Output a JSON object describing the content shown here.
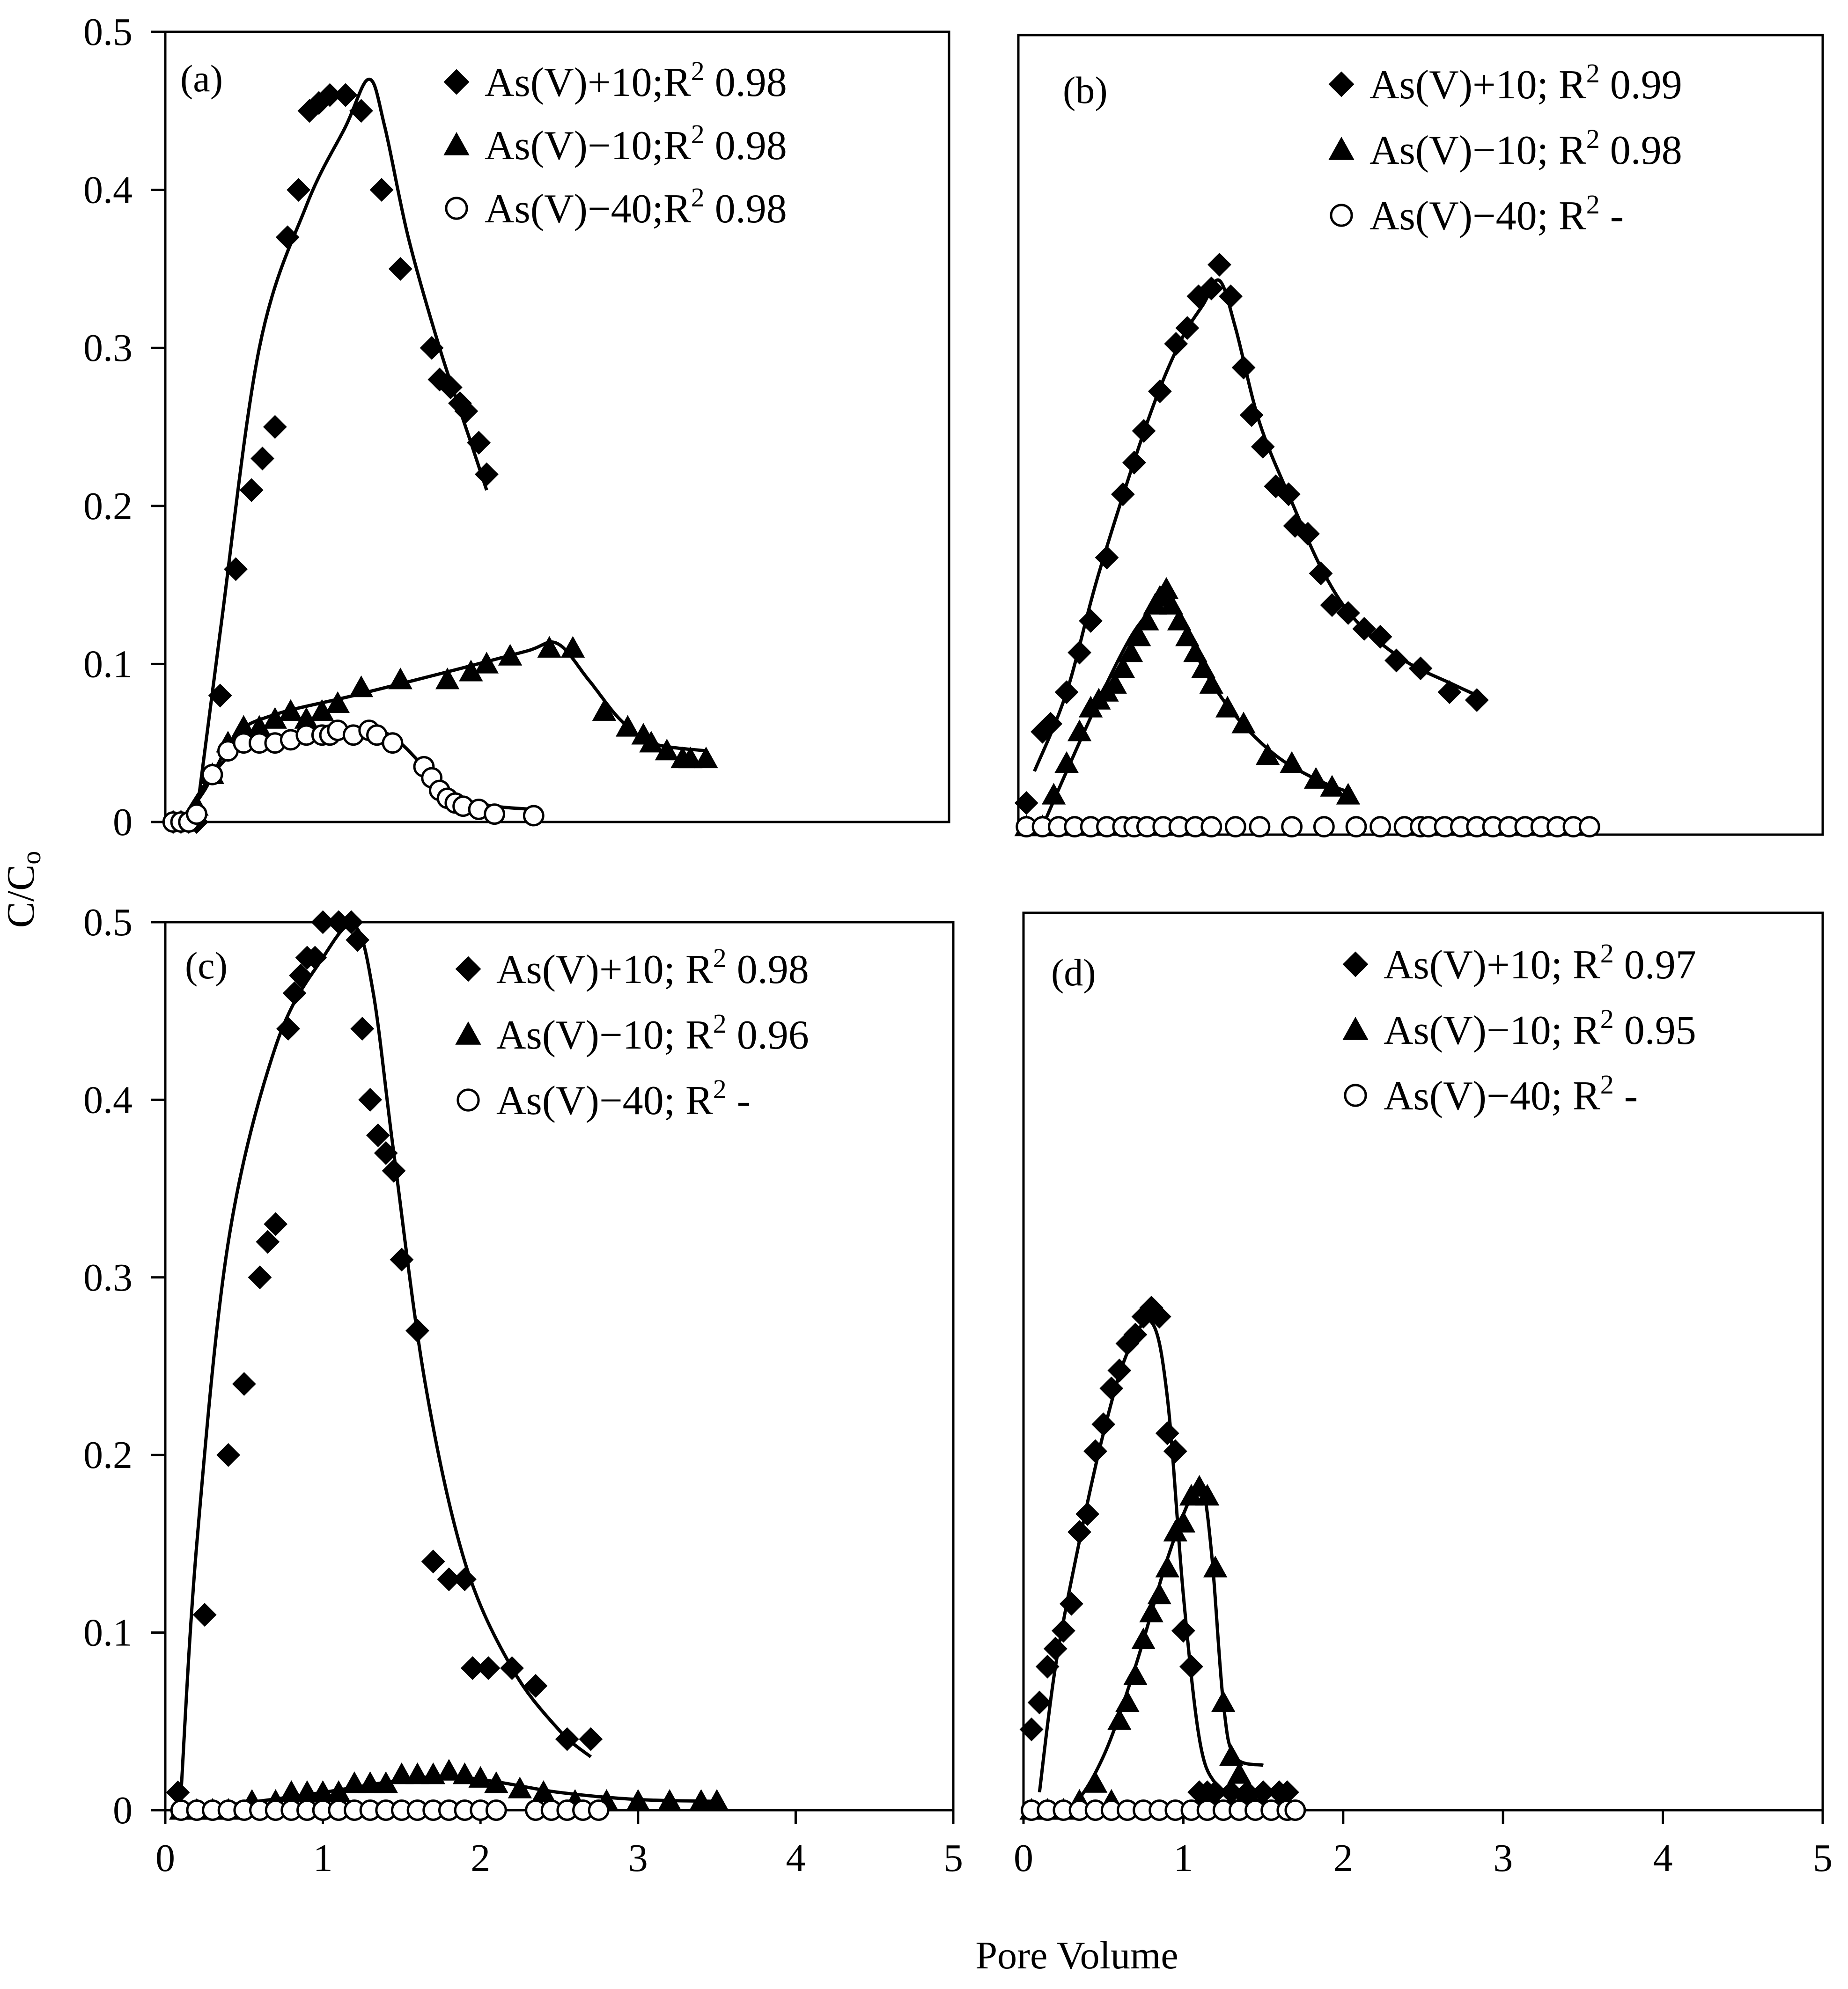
{
  "figure": {
    "x_axis_title": "Pore Volume",
    "y_axis_title_main": "C/C",
    "y_axis_title_sub": "o"
  },
  "chart_data": [
    {
      "type": "scatter",
      "panel_label": "(a)",
      "xlim": [
        0,
        5
      ],
      "ylim": [
        0,
        0.5
      ],
      "x_ticks": [],
      "y_ticks": [
        "0",
        "0.1",
        "0.2",
        "0.3",
        "0.4",
        "0.5"
      ],
      "series": [
        {
          "name": "As(V)+10",
          "marker": "diamond",
          "legend_prefix": "As(V)+10;R",
          "legend_value": "0.98",
          "x": [
            0.05,
            0.1,
            0.15,
            0.2,
            0.35,
            0.45,
            0.55,
            0.62,
            0.7,
            0.78,
            0.85,
            0.92,
            0.98,
            1.05,
            1.15,
            1.25,
            1.38,
            1.5,
            1.7,
            1.75,
            1.82,
            1.88,
            1.92,
            2.0,
            2.05
          ],
          "y": [
            0,
            0,
            0,
            0,
            0.08,
            0.16,
            0.21,
            0.23,
            0.25,
            0.37,
            0.4,
            0.45,
            0.455,
            0.46,
            0.46,
            0.45,
            0.4,
            0.35,
            0.3,
            0.28,
            0.275,
            0.265,
            0.26,
            0.24,
            0.22
          ],
          "fit_x": [
            0.2,
            0.35,
            0.6,
            0.9,
            1.15,
            1.3,
            1.4,
            1.55,
            1.75,
            1.95,
            2.05
          ],
          "fit_y": [
            0.005,
            0.12,
            0.3,
            0.39,
            0.44,
            0.47,
            0.44,
            0.37,
            0.3,
            0.24,
            0.21
          ]
        },
        {
          "name": "As(V)-10",
          "marker": "triangle",
          "legend_prefix": "As(V)−10;R",
          "legend_value": "0.98",
          "x": [
            0.1,
            0.2,
            0.3,
            0.4,
            0.5,
            0.6,
            0.7,
            0.8,
            0.9,
            1.0,
            1.1,
            1.25,
            1.5,
            1.8,
            1.95,
            2.05,
            2.2,
            2.45,
            2.6,
            2.8,
            2.95,
            3.05,
            3.1,
            3.2,
            3.3,
            3.35,
            3.45
          ],
          "y": [
            0,
            0.01,
            0.03,
            0.05,
            0.06,
            0.06,
            0.065,
            0.07,
            0.065,
            0.07,
            0.075,
            0.085,
            0.09,
            0.09,
            0.095,
            0.1,
            0.105,
            0.11,
            0.11,
            0.07,
            0.06,
            0.055,
            0.05,
            0.045,
            0.04,
            0.04,
            0.04
          ],
          "fit_x": [
            0.1,
            0.25,
            0.45,
            0.7,
            1.2,
            1.8,
            2.3,
            2.5,
            2.7,
            2.9,
            3.1,
            3.45
          ],
          "fit_y": [
            0,
            0.02,
            0.055,
            0.068,
            0.08,
            0.095,
            0.108,
            0.113,
            0.09,
            0.065,
            0.05,
            0.045
          ]
        },
        {
          "name": "As(V)-40",
          "marker": "circle",
          "legend_prefix": "As(V)−40;R",
          "legend_value": "0.98",
          "x": [
            0.05,
            0.1,
            0.15,
            0.2,
            0.3,
            0.4,
            0.5,
            0.6,
            0.7,
            0.8,
            0.9,
            1.0,
            1.05,
            1.1,
            1.2,
            1.3,
            1.35,
            1.45,
            1.65,
            1.7,
            1.75,
            1.8,
            1.85,
            1.9,
            2.0,
            2.1,
            2.35
          ],
          "y": [
            0,
            0,
            0,
            0.005,
            0.03,
            0.045,
            0.05,
            0.05,
            0.05,
            0.052,
            0.055,
            0.055,
            0.055,
            0.058,
            0.055,
            0.058,
            0.055,
            0.05,
            0.035,
            0.028,
            0.02,
            0.015,
            0.012,
            0.01,
            0.008,
            0.005,
            0.004
          ],
          "fit_x": [
            0.1,
            0.3,
            0.5,
            0.8,
            1.1,
            1.35,
            1.5,
            1.7,
            1.9,
            2.1,
            2.35
          ],
          "fit_y": [
            0,
            0.03,
            0.048,
            0.053,
            0.057,
            0.058,
            0.05,
            0.03,
            0.015,
            0.01,
            0.008
          ]
        }
      ]
    },
    {
      "type": "scatter",
      "panel_label": "(b)",
      "xlim": [
        0,
        5
      ],
      "ylim": [
        -0.005,
        0.5
      ],
      "x_ticks": [],
      "y_ticks": [],
      "series": [
        {
          "name": "As(V)+10",
          "marker": "diamond",
          "legend_prefix": "As(V)+10; R",
          "legend_value": "0.99",
          "x": [
            0.05,
            0.15,
            0.2,
            0.3,
            0.38,
            0.45,
            0.55,
            0.65,
            0.72,
            0.78,
            0.88,
            0.98,
            1.05,
            1.12,
            1.2,
            1.25,
            1.32,
            1.4,
            1.45,
            1.52,
            1.6,
            1.68,
            1.72,
            1.8,
            1.88,
            1.95,
            2.05,
            2.15,
            2.25,
            2.35,
            2.5,
            2.68,
            2.85
          ],
          "y": [
            0.015,
            0.06,
            0.065,
            0.085,
            0.11,
            0.13,
            0.17,
            0.21,
            0.23,
            0.25,
            0.275,
            0.305,
            0.315,
            0.335,
            0.34,
            0.355,
            0.335,
            0.29,
            0.26,
            0.24,
            0.215,
            0.21,
            0.19,
            0.185,
            0.16,
            0.14,
            0.135,
            0.125,
            0.12,
            0.105,
            0.1,
            0.085,
            0.08
          ],
          "fit_x": [
            0.1,
            0.3,
            0.5,
            0.8,
            1.0,
            1.15,
            1.25,
            1.35,
            1.5,
            1.7,
            1.9,
            2.1,
            2.4,
            2.7,
            2.85
          ],
          "fit_y": [
            0.035,
            0.085,
            0.16,
            0.255,
            0.305,
            0.33,
            0.345,
            0.315,
            0.255,
            0.205,
            0.16,
            0.13,
            0.105,
            0.09,
            0.083
          ]
        },
        {
          "name": "As(V)-10",
          "marker": "triangle",
          "legend_prefix": "As(V)−10; R",
          "legend_value": "0.98",
          "x": [
            0.05,
            0.15,
            0.22,
            0.3,
            0.38,
            0.45,
            0.5,
            0.55,
            0.6,
            0.65,
            0.7,
            0.75,
            0.8,
            0.85,
            0.88,
            0.92,
            0.95,
            1.0,
            1.05,
            1.1,
            1.15,
            1.2,
            1.3,
            1.4,
            1.55,
            1.7,
            1.85,
            1.95,
            2.05
          ],
          "y": [
            0,
            0,
            0.02,
            0.04,
            0.06,
            0.075,
            0.08,
            0.085,
            0.09,
            0.1,
            0.11,
            0.12,
            0.13,
            0.14,
            0.145,
            0.15,
            0.14,
            0.13,
            0.12,
            0.11,
            0.1,
            0.09,
            0.075,
            0.065,
            0.045,
            0.04,
            0.03,
            0.025,
            0.02
          ],
          "fit_x": [
            0.15,
            0.3,
            0.5,
            0.7,
            0.85,
            0.92,
            1.0,
            1.15,
            1.35,
            1.6,
            1.85,
            2.05
          ],
          "fit_y": [
            0,
            0.035,
            0.08,
            0.12,
            0.14,
            0.148,
            0.135,
            0.1,
            0.07,
            0.045,
            0.03,
            0.022
          ]
        },
        {
          "name": "As(V)-40",
          "marker": "circle",
          "legend_prefix": "As(V)−40; R",
          "legend_value": "-",
          "x": [
            0.05,
            0.15,
            0.25,
            0.35,
            0.45,
            0.55,
            0.65,
            0.72,
            0.8,
            0.9,
            1.0,
            1.1,
            1.2,
            1.35,
            1.5,
            1.7,
            1.9,
            2.1,
            2.25,
            2.4,
            2.5,
            2.55,
            2.65,
            2.75,
            2.85,
            2.95,
            3.05,
            3.15,
            3.25,
            3.35,
            3.45,
            3.55
          ],
          "y": [
            0,
            0,
            0,
            0,
            0,
            0,
            0,
            0,
            0,
            0,
            0,
            0,
            0,
            0,
            0,
            0,
            0,
            0,
            0,
            0,
            0,
            0,
            0,
            0,
            0,
            0,
            0,
            0,
            0,
            0,
            0,
            0
          ],
          "fit_x": [],
          "fit_y": []
        }
      ]
    },
    {
      "type": "scatter",
      "panel_label": "(c)",
      "xlim": [
        0,
        5
      ],
      "ylim": [
        0,
        0.5
      ],
      "x_ticks": [
        "0",
        "1",
        "2",
        "3",
        "4",
        "5"
      ],
      "y_ticks": [
        "0",
        "0.1",
        "0.2",
        "0.3",
        "0.4",
        "0.5"
      ],
      "series": [
        {
          "name": "As(V)+10",
          "marker": "diamond",
          "legend_prefix": "As(V)+10; R",
          "legend_value": "0.98",
          "x": [
            0.08,
            0.25,
            0.4,
            0.5,
            0.6,
            0.65,
            0.7,
            0.78,
            0.82,
            0.86,
            0.9,
            0.95,
            1.0,
            1.1,
            1.18,
            1.22,
            1.25,
            1.3,
            1.35,
            1.4,
            1.45,
            1.5,
            1.6,
            1.7,
            1.8,
            1.9,
            1.95,
            2.05,
            2.2,
            2.35,
            2.55,
            2.7
          ],
          "y": [
            0.01,
            0.11,
            0.2,
            0.24,
            0.3,
            0.32,
            0.33,
            0.44,
            0.46,
            0.47,
            0.48,
            0.48,
            0.5,
            0.5,
            0.5,
            0.49,
            0.44,
            0.4,
            0.38,
            0.37,
            0.36,
            0.31,
            0.27,
            0.14,
            0.13,
            0.13,
            0.08,
            0.08,
            0.08,
            0.07,
            0.04,
            0.04
          ],
          "fit_x": [
            0.1,
            0.2,
            0.4,
            0.7,
            1.0,
            1.2,
            1.32,
            1.45,
            1.65,
            1.9,
            2.2,
            2.5,
            2.7
          ],
          "fit_y": [
            0.01,
            0.15,
            0.32,
            0.43,
            0.48,
            0.498,
            0.46,
            0.37,
            0.24,
            0.14,
            0.08,
            0.045,
            0.03
          ]
        },
        {
          "name": "As(V)-10",
          "marker": "triangle",
          "legend_prefix": "As(V)−10; R",
          "legend_value": "0.96",
          "x": [
            0.1,
            0.2,
            0.3,
            0.4,
            0.55,
            0.7,
            0.8,
            0.9,
            1.0,
            1.1,
            1.2,
            1.3,
            1.4,
            1.5,
            1.6,
            1.7,
            1.8,
            1.9,
            2.0,
            2.1,
            2.25,
            2.4,
            2.6,
            2.8,
            3.0,
            3.2,
            3.4,
            3.5
          ],
          "y": [
            0,
            0,
            0,
            0,
            0.005,
            0.005,
            0.01,
            0.01,
            0.01,
            0.01,
            0.015,
            0.015,
            0.015,
            0.02,
            0.02,
            0.02,
            0.022,
            0.02,
            0.018,
            0.015,
            0.012,
            0.01,
            0.005,
            0.005,
            0.005,
            0.005,
            0.005,
            0.005
          ],
          "fit_x": [
            0.1,
            0.5,
            1.0,
            1.5,
            1.8,
            2.1,
            2.5,
            3.0,
            3.5
          ],
          "fit_y": [
            0,
            0.004,
            0.01,
            0.017,
            0.019,
            0.016,
            0.01,
            0.006,
            0.005
          ]
        },
        {
          "name": "As(V)-40",
          "marker": "circle",
          "legend_prefix": "As(V)−40; R",
          "legend_value": "-",
          "x": [
            0.1,
            0.2,
            0.3,
            0.4,
            0.5,
            0.6,
            0.7,
            0.8,
            0.9,
            1.0,
            1.1,
            1.2,
            1.3,
            1.4,
            1.5,
            1.6,
            1.7,
            1.8,
            1.9,
            2.0,
            2.1,
            2.35,
            2.45,
            2.55,
            2.65,
            2.75
          ],
          "y": [
            0,
            0,
            0,
            0,
            0,
            0,
            0,
            0,
            0,
            0,
            0,
            0,
            0,
            0,
            0,
            0,
            0,
            0,
            0,
            0,
            0,
            0,
            0,
            0,
            0,
            0
          ],
          "fit_x": [],
          "fit_y": []
        }
      ]
    },
    {
      "type": "scatter",
      "panel_label": "(d)",
      "xlim": [
        0,
        5
      ],
      "ylim": [
        0,
        0.5
      ],
      "x_ticks": [
        "0",
        "1",
        "2",
        "3",
        "4",
        "5"
      ],
      "y_ticks": [],
      "series": [
        {
          "name": "As(V)+10",
          "marker": "diamond",
          "legend_prefix": "As(V)+10; R",
          "legend_value": "0.97",
          "x": [
            0.05,
            0.1,
            0.15,
            0.2,
            0.25,
            0.3,
            0.35,
            0.4,
            0.45,
            0.5,
            0.55,
            0.6,
            0.65,
            0.7,
            0.75,
            0.8,
            0.85,
            0.9,
            0.95,
            1.0,
            1.05,
            1.1,
            1.15,
            1.2,
            1.3,
            1.4,
            1.5,
            1.6,
            1.65
          ],
          "y": [
            0.045,
            0.06,
            0.08,
            0.09,
            0.1,
            0.115,
            0.155,
            0.165,
            0.2,
            0.215,
            0.235,
            0.245,
            0.26,
            0.265,
            0.275,
            0.28,
            0.275,
            0.21,
            0.2,
            0.1,
            0.08,
            0.01,
            0.01,
            0.01,
            0.01,
            0.01,
            0.01,
            0.01,
            0.01
          ],
          "fit_x": [
            0.1,
            0.2,
            0.35,
            0.5,
            0.65,
            0.8,
            0.9,
            1.0,
            1.1,
            1.2,
            1.35,
            1.5
          ],
          "fit_y": [
            0.01,
            0.08,
            0.15,
            0.21,
            0.255,
            0.272,
            0.23,
            0.12,
            0.04,
            0.015,
            0.008,
            0.005
          ]
        },
        {
          "name": "As(V)-10",
          "marker": "triangle",
          "legend_prefix": "As(V)−10; R",
          "legend_value": "0.95",
          "x": [
            0.05,
            0.15,
            0.25,
            0.35,
            0.45,
            0.55,
            0.6,
            0.65,
            0.7,
            0.75,
            0.8,
            0.85,
            0.9,
            0.95,
            1.0,
            1.05,
            1.1,
            1.15,
            1.2,
            1.25,
            1.3,
            1.35,
            1.4
          ],
          "y": [
            0,
            0,
            0,
            0.005,
            0.015,
            0.005,
            0.05,
            0.06,
            0.075,
            0.095,
            0.11,
            0.12,
            0.135,
            0.155,
            0.16,
            0.175,
            0.18,
            0.175,
            0.135,
            0.06,
            0.03,
            0.02,
            0.01
          ],
          "fit_x": [
            0.1,
            0.3,
            0.5,
            0.7,
            0.9,
            1.05,
            1.12,
            1.18,
            1.25,
            1.32,
            1.5
          ],
          "fit_y": [
            0,
            0.002,
            0.03,
            0.08,
            0.14,
            0.175,
            0.18,
            0.14,
            0.06,
            0.03,
            0.025
          ]
        },
        {
          "name": "As(V)-40",
          "marker": "circle",
          "legend_prefix": "As(V)−40; R",
          "legend_value": "-",
          "x": [
            0.05,
            0.15,
            0.25,
            0.35,
            0.45,
            0.55,
            0.65,
            0.75,
            0.85,
            0.95,
            1.05,
            1.15,
            1.25,
            1.35,
            1.45,
            1.55,
            1.65,
            1.7
          ],
          "y": [
            0,
            0,
            0,
            0,
            0,
            0,
            0,
            0,
            0,
            0,
            0,
            0,
            0,
            0,
            0,
            0,
            0,
            0
          ],
          "fit_x": [],
          "fit_y": []
        }
      ]
    }
  ]
}
